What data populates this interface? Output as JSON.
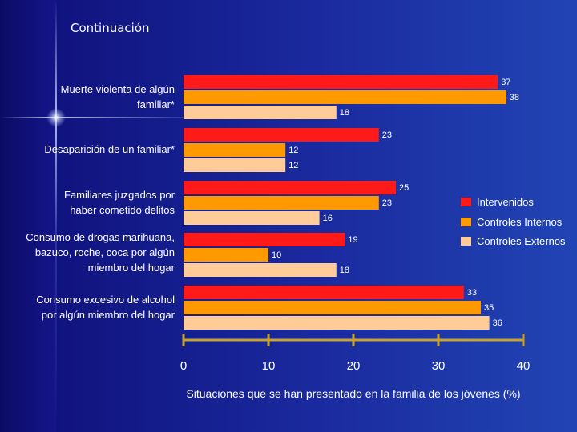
{
  "slide": {
    "title": "Continuación"
  },
  "colors": {
    "intervenidos": "#ff1a1a",
    "controles_internos": "#ff9900",
    "controles_externos": "#ffcc99",
    "axis": "#c9a227",
    "text": "#ffffff"
  },
  "chart_data": {
    "type": "bar",
    "orientation": "horizontal",
    "xlabel": "Situaciones que se han presentado en la familia de los jóvenes (%)",
    "xlim": [
      0,
      40
    ],
    "xticks": [
      0,
      10,
      20,
      30,
      40
    ],
    "categories": [
      [
        "Muerte violenta de algún",
        "familiar*"
      ],
      [
        "Desaparición de un familiar*"
      ],
      [
        "Familiares juzgados por",
        "haber cometido delitos"
      ],
      [
        "Consumo de drogas marihuana,",
        "bazuco, roche, coca por algún",
        "miembro del hogar"
      ],
      [
        "Consumo excesivo de alcohol",
        "por algún miembro del hogar"
      ]
    ],
    "series": [
      {
        "name": "Intervenidos",
        "color": "#ff1a1a",
        "values": [
          37,
          23,
          25,
          19,
          33
        ]
      },
      {
        "name": "Controles Internos",
        "color": "#ff9900",
        "values": [
          38,
          12,
          23,
          10,
          35
        ]
      },
      {
        "name": "Controles Externos",
        "color": "#ffcc99",
        "values": [
          18,
          12,
          16,
          18,
          36
        ]
      }
    ],
    "legend": "right"
  }
}
